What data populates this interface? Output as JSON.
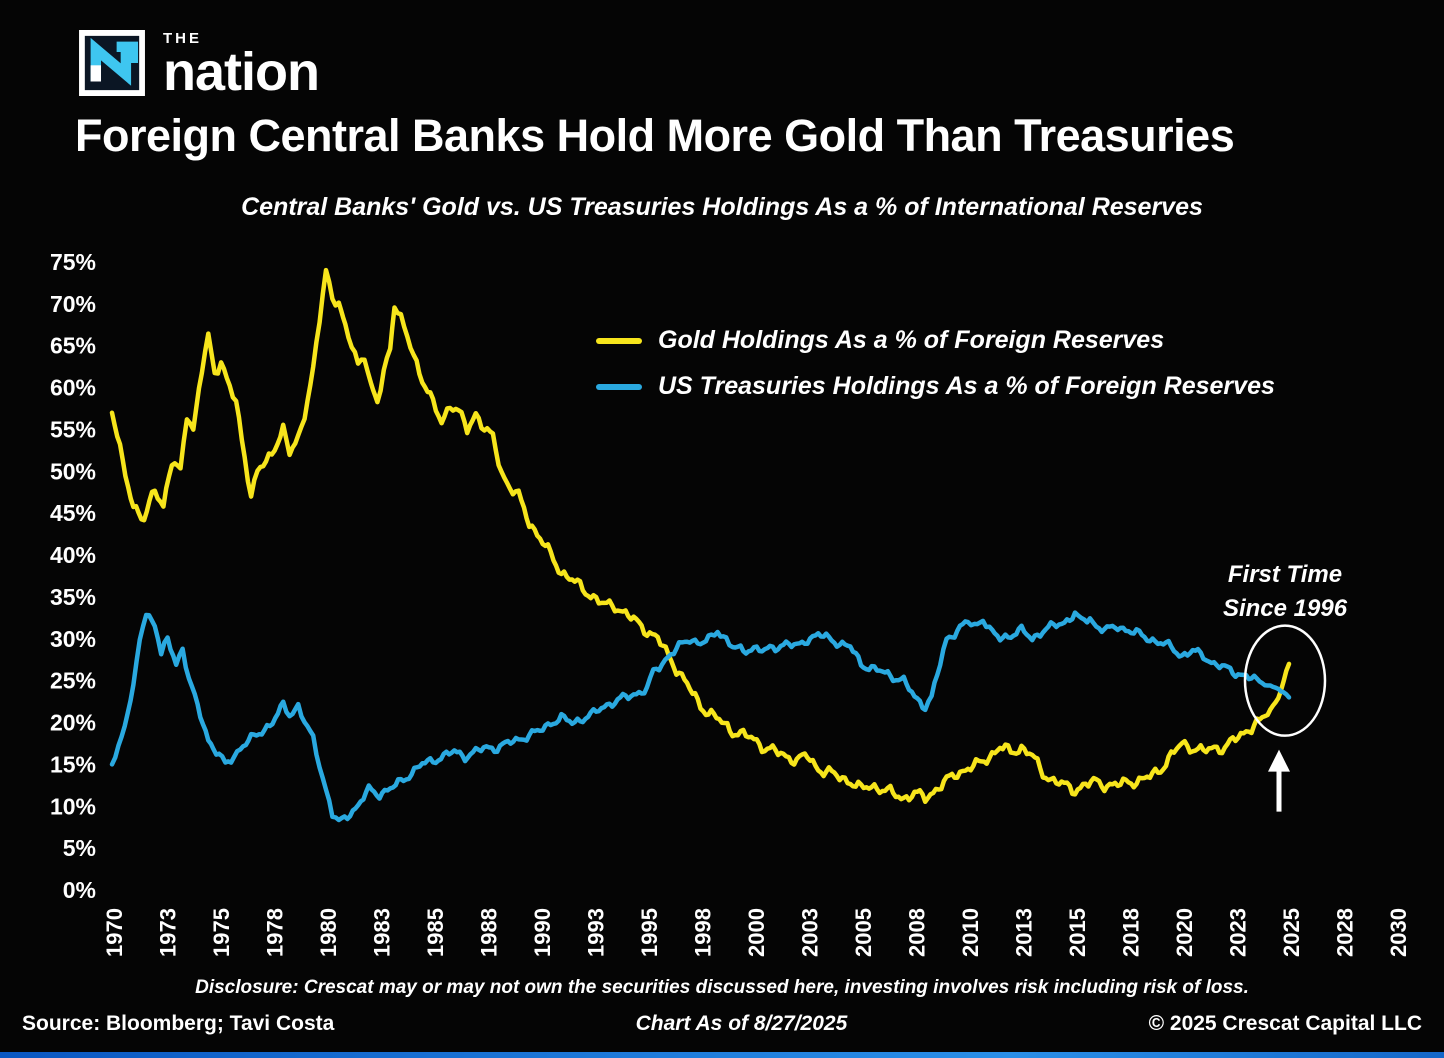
{
  "logo": {
    "the": "THE",
    "nation": "nation"
  },
  "title": "Foreign Central Banks Hold More Gold Than Treasuries",
  "subtitle": "Central Banks' Gold vs. US Treasuries Holdings As a % of International Reserves",
  "legend": [
    {
      "label": "Gold Holdings As a % of Foreign Reserves",
      "color": "#f7e51c"
    },
    {
      "label": "US Treasuries Holdings As a % of Foreign Reserves",
      "color": "#2aa9e0"
    }
  ],
  "annotation": {
    "line1": "First Time",
    "line2": "Since 1996"
  },
  "footer": {
    "disclosure": "Disclosure: Crescat may or may not own the securities discussed here, investing involves risk including risk of loss.",
    "source": "Source: Bloomberg; Tavi Costa",
    "as_of": "Chart As of 8/27/2025",
    "copyright": "© 2025 Crescat Capital LLC"
  },
  "colors": {
    "background": "#050505",
    "text": "#ffffff",
    "gold": "#f7e51c",
    "treasuries": "#2aa9e0",
    "annotation": "#ffffff"
  },
  "chart_data": {
    "type": "line",
    "title": "Central Banks' Gold vs. US Treasuries Holdings As a % of International Reserves",
    "xlabel": "",
    "ylabel": "",
    "grid": false,
    "legend_position": "upper center",
    "xlim": [
      1970,
      2030
    ],
    "ylim": [
      0,
      75
    ],
    "y_tick_labels": [
      "0%",
      "5%",
      "10%",
      "15%",
      "20%",
      "25%",
      "30%",
      "35%",
      "40%",
      "45%",
      "50%",
      "55%",
      "60%",
      "65%",
      "70%",
      "75%"
    ],
    "x_ticks": [
      1970,
      1973,
      1975,
      1978,
      1980,
      1983,
      1985,
      1988,
      1990,
      1993,
      1995,
      1998,
      2000,
      2003,
      2005,
      2008,
      2010,
      2013,
      2015,
      2018,
      2020,
      2023,
      2025,
      2028,
      2030
    ],
    "series": [
      {
        "name": "Gold Holdings As a % of Foreign Reserves",
        "color": "#f7e51c",
        "points": [
          [
            1970,
            57
          ],
          [
            1970.5,
            51
          ],
          [
            1971,
            46
          ],
          [
            1971.5,
            44
          ],
          [
            1972,
            48
          ],
          [
            1972.4,
            46
          ],
          [
            1972.8,
            51
          ],
          [
            1973.2,
            50
          ],
          [
            1973.5,
            57
          ],
          [
            1973.8,
            55
          ],
          [
            1974.2,
            62
          ],
          [
            1974.5,
            66
          ],
          [
            1974.8,
            62
          ],
          [
            1975.1,
            63
          ],
          [
            1975.5,
            60
          ],
          [
            1975.8,
            58
          ],
          [
            1976.2,
            52
          ],
          [
            1976.5,
            47
          ],
          [
            1976.8,
            50
          ],
          [
            1977.2,
            51
          ],
          [
            1977.6,
            53
          ],
          [
            1978,
            55
          ],
          [
            1978.3,
            52
          ],
          [
            1978.7,
            54
          ],
          [
            1979,
            57
          ],
          [
            1979.4,
            62
          ],
          [
            1979.7,
            68
          ],
          [
            1980,
            74
          ],
          [
            1980.3,
            71
          ],
          [
            1980.6,
            70
          ],
          [
            1980.9,
            67
          ],
          [
            1981.2,
            65
          ],
          [
            1981.5,
            63
          ],
          [
            1981.8,
            64
          ],
          [
            1982.1,
            60
          ],
          [
            1982.4,
            58
          ],
          [
            1982.7,
            62
          ],
          [
            1983,
            65
          ],
          [
            1983.2,
            70
          ],
          [
            1983.5,
            68
          ],
          [
            1983.8,
            66
          ],
          [
            1984.1,
            64
          ],
          [
            1984.5,
            61
          ],
          [
            1985,
            58
          ],
          [
            1985.4,
            56
          ],
          [
            1985.8,
            58
          ],
          [
            1986.2,
            57
          ],
          [
            1986.6,
            55
          ],
          [
            1987,
            57
          ],
          [
            1987.4,
            55
          ],
          [
            1987.8,
            54
          ],
          [
            1988.2,
            50
          ],
          [
            1988.6,
            48
          ],
          [
            1989,
            47
          ],
          [
            1989.5,
            44
          ],
          [
            1990,
            42
          ],
          [
            1990.5,
            40
          ],
          [
            1991,
            38
          ],
          [
            1991.5,
            37
          ],
          [
            1992,
            36
          ],
          [
            1992.5,
            35
          ],
          [
            1993,
            34
          ],
          [
            1993.5,
            34
          ],
          [
            1994,
            33
          ],
          [
            1994.5,
            32
          ],
          [
            1995,
            31
          ],
          [
            1995.5,
            30
          ],
          [
            1996,
            28
          ],
          [
            1996.5,
            26
          ],
          [
            1997,
            24
          ],
          [
            1997.5,
            22
          ],
          [
            1998,
            21
          ],
          [
            1998.5,
            20
          ],
          [
            1999,
            19
          ],
          [
            1999.5,
            18.5
          ],
          [
            2000,
            18
          ],
          [
            2000.5,
            17
          ],
          [
            2001,
            16.5
          ],
          [
            2001.5,
            16
          ],
          [
            2002,
            15.5
          ],
          [
            2002.5,
            16
          ],
          [
            2003,
            14.5
          ],
          [
            2003.5,
            14
          ],
          [
            2004,
            13.5
          ],
          [
            2004.5,
            13
          ],
          [
            2005,
            12
          ],
          [
            2005.5,
            12.5
          ],
          [
            2006,
            12
          ],
          [
            2006.5,
            11.5
          ],
          [
            2007,
            11
          ],
          [
            2007.5,
            11.5
          ],
          [
            2008,
            11
          ],
          [
            2008.5,
            12
          ],
          [
            2009,
            13
          ],
          [
            2009.5,
            14
          ],
          [
            2010,
            14.5
          ],
          [
            2010.5,
            15
          ],
          [
            2011,
            16
          ],
          [
            2011.5,
            17
          ],
          [
            2012,
            16.5
          ],
          [
            2012.5,
            17
          ],
          [
            2013,
            16
          ],
          [
            2013.5,
            14
          ],
          [
            2014,
            13
          ],
          [
            2014.5,
            12.5
          ],
          [
            2015,
            12
          ],
          [
            2015.5,
            12.5
          ],
          [
            2016,
            13
          ],
          [
            2016.5,
            12.5
          ],
          [
            2017,
            12.5
          ],
          [
            2017.5,
            13
          ],
          [
            2018,
            13
          ],
          [
            2018.5,
            13.5
          ],
          [
            2019,
            14.5
          ],
          [
            2019.5,
            16
          ],
          [
            2020,
            17.5
          ],
          [
            2020.5,
            17
          ],
          [
            2021,
            16.5
          ],
          [
            2021.5,
            17
          ],
          [
            2022,
            17
          ],
          [
            2022.5,
            18
          ],
          [
            2023,
            19
          ],
          [
            2023.5,
            20
          ],
          [
            2024,
            21
          ],
          [
            2024.5,
            23
          ],
          [
            2025,
            27
          ]
        ]
      },
      {
        "name": "US Treasuries Holdings As a % of Foreign Reserves",
        "color": "#2aa9e0",
        "points": [
          [
            1970,
            15
          ],
          [
            1970.3,
            17
          ],
          [
            1970.6,
            20
          ],
          [
            1971,
            24
          ],
          [
            1971.3,
            30
          ],
          [
            1971.6,
            33
          ],
          [
            1972,
            32
          ],
          [
            1972.3,
            28
          ],
          [
            1972.6,
            30
          ],
          [
            1973,
            27
          ],
          [
            1973.3,
            29
          ],
          [
            1973.6,
            25
          ],
          [
            1974,
            22
          ],
          [
            1974.5,
            18
          ],
          [
            1975,
            16
          ],
          [
            1975.3,
            15
          ],
          [
            1975.7,
            16
          ],
          [
            1976,
            17
          ],
          [
            1976.5,
            18
          ],
          [
            1977,
            19
          ],
          [
            1977.5,
            20
          ],
          [
            1978,
            22
          ],
          [
            1978.3,
            21
          ],
          [
            1978.7,
            22
          ],
          [
            1979,
            20
          ],
          [
            1979.4,
            18
          ],
          [
            1979.7,
            15
          ],
          [
            1980,
            12
          ],
          [
            1980.3,
            9
          ],
          [
            1980.6,
            8
          ],
          [
            1981,
            9
          ],
          [
            1981.5,
            10
          ],
          [
            1982,
            12
          ],
          [
            1982.5,
            11.5
          ],
          [
            1983,
            12
          ],
          [
            1983.5,
            13
          ],
          [
            1984,
            14
          ],
          [
            1984.5,
            15
          ],
          [
            1985,
            15.5
          ],
          [
            1985.5,
            16
          ],
          [
            1986,
            16.5
          ],
          [
            1986.5,
            16
          ],
          [
            1987,
            16.5
          ],
          [
            1987.5,
            17
          ],
          [
            1988,
            17
          ],
          [
            1988.5,
            17.5
          ],
          [
            1989,
            18
          ],
          [
            1989.5,
            18.5
          ],
          [
            1990,
            19
          ],
          [
            1990.5,
            20
          ],
          [
            1991,
            20.5
          ],
          [
            1991.5,
            20
          ],
          [
            1992,
            20.5
          ],
          [
            1992.5,
            21
          ],
          [
            1993,
            22
          ],
          [
            1993.5,
            22.5
          ],
          [
            1994,
            23
          ],
          [
            1994.5,
            23.5
          ],
          [
            1995,
            24
          ],
          [
            1995.3,
            26
          ],
          [
            1995.7,
            27
          ],
          [
            1996,
            28
          ],
          [
            1996.5,
            29
          ],
          [
            1997,
            30
          ],
          [
            1997.5,
            29.5
          ],
          [
            1998,
            30
          ],
          [
            1998.3,
            31
          ],
          [
            1998.7,
            30
          ],
          [
            1999,
            29
          ],
          [
            1999.5,
            28.5
          ],
          [
            2000,
            29
          ],
          [
            2000.5,
            28.5
          ],
          [
            2001,
            29
          ],
          [
            2001.5,
            29.5
          ],
          [
            2002,
            29
          ],
          [
            2002.5,
            30
          ],
          [
            2003,
            30.5
          ],
          [
            2003.5,
            30
          ],
          [
            2004,
            29.5
          ],
          [
            2004.5,
            29
          ],
          [
            2005,
            27
          ],
          [
            2005.5,
            26.5
          ],
          [
            2006,
            26
          ],
          [
            2006.5,
            25.5
          ],
          [
            2007,
            25
          ],
          [
            2007.5,
            23
          ],
          [
            2008,
            22
          ],
          [
            2008.3,
            23
          ],
          [
            2008.7,
            27
          ],
          [
            2009,
            30
          ],
          [
            2009.5,
            31
          ],
          [
            2010,
            32
          ],
          [
            2010.3,
            31.5
          ],
          [
            2010.7,
            32.5
          ],
          [
            2011,
            31
          ],
          [
            2011.5,
            30
          ],
          [
            2012,
            30.5
          ],
          [
            2012.5,
            31
          ],
          [
            2013,
            30
          ],
          [
            2013.5,
            31
          ],
          [
            2014,
            31.5
          ],
          [
            2014.5,
            32
          ],
          [
            2015,
            33
          ],
          [
            2015.3,
            32
          ],
          [
            2015.7,
            32.5
          ],
          [
            2016,
            31.5
          ],
          [
            2016.5,
            31
          ],
          [
            2017,
            31.5
          ],
          [
            2017.5,
            31
          ],
          [
            2018,
            30.5
          ],
          [
            2018.5,
            30
          ],
          [
            2019,
            29.5
          ],
          [
            2019.5,
            29
          ],
          [
            2020,
            28
          ],
          [
            2020.5,
            28.5
          ],
          [
            2021,
            28
          ],
          [
            2021.5,
            27
          ],
          [
            2022,
            26.5
          ],
          [
            2022.5,
            26
          ],
          [
            2023,
            25.5
          ],
          [
            2023.5,
            25
          ],
          [
            2024,
            24.5
          ],
          [
            2024.5,
            24
          ],
          [
            2025,
            23
          ]
        ]
      }
    ],
    "annotation": {
      "text": "First Time Since 1996",
      "target_year": 2025
    }
  }
}
